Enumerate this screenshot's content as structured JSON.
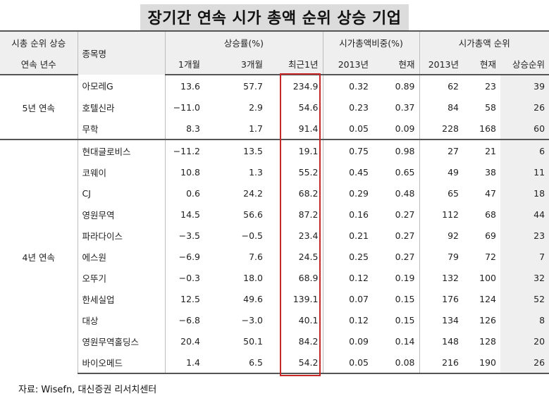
{
  "title": "장기간 연속 시가 총액 순위 상승 기업",
  "headers": {
    "streak_top": "시총 순위 상승",
    "streak_bottom": "연속 년수",
    "name": "종목명",
    "return_group": "상승률(%)",
    "return_1m": "1개월",
    "return_3m": "3개월",
    "return_1y": "최근1년",
    "weight_group": "시가총액비중(%)",
    "weight_2013": "2013년",
    "weight_now": "현재",
    "rank_group": "시가총액 순위",
    "rank_2013": "2013년",
    "rank_now": "현재",
    "rank_up": "상승순위"
  },
  "groups": [
    {
      "label": "5년 연속",
      "rows": [
        {
          "name": "아모레G",
          "r1m": "13.6",
          "r3m": "57.7",
          "r1y": "234.9",
          "w2013": "0.32",
          "wnow": "0.89",
          "k2013": "62",
          "know": "23",
          "kup": "39"
        },
        {
          "name": "호텔신라",
          "r1m": "−11.0",
          "r3m": "2.9",
          "r1y": "54.6",
          "w2013": "0.23",
          "wnow": "0.37",
          "k2013": "84",
          "know": "58",
          "kup": "26"
        },
        {
          "name": "무학",
          "r1m": "8.3",
          "r3m": "1.7",
          "r1y": "91.4",
          "w2013": "0.05",
          "wnow": "0.09",
          "k2013": "228",
          "know": "168",
          "kup": "60"
        }
      ]
    },
    {
      "label": "4년 연속",
      "rows": [
        {
          "name": "현대글로비스",
          "r1m": "−11.2",
          "r3m": "13.5",
          "r1y": "19.1",
          "w2013": "0.75",
          "wnow": "0.98",
          "k2013": "27",
          "know": "21",
          "kup": "6"
        },
        {
          "name": "코웨이",
          "r1m": "10.8",
          "r3m": "1.3",
          "r1y": "55.2",
          "w2013": "0.45",
          "wnow": "0.65",
          "k2013": "49",
          "know": "38",
          "kup": "11"
        },
        {
          "name": "CJ",
          "r1m": "0.6",
          "r3m": "24.2",
          "r1y": "68.2",
          "w2013": "0.29",
          "wnow": "0.48",
          "k2013": "65",
          "know": "47",
          "kup": "18"
        },
        {
          "name": "영원무역",
          "r1m": "14.5",
          "r3m": "56.6",
          "r1y": "87.2",
          "w2013": "0.16",
          "wnow": "0.27",
          "k2013": "112",
          "know": "68",
          "kup": "44"
        },
        {
          "name": "파라다이스",
          "r1m": "−3.5",
          "r3m": "−0.5",
          "r1y": "23.4",
          "w2013": "0.21",
          "wnow": "0.27",
          "k2013": "92",
          "know": "69",
          "kup": "23"
        },
        {
          "name": "에스원",
          "r1m": "−6.9",
          "r3m": "7.6",
          "r1y": "24.5",
          "w2013": "0.25",
          "wnow": "0.27",
          "k2013": "79",
          "know": "72",
          "kup": "7"
        },
        {
          "name": "오뚜기",
          "r1m": "−0.3",
          "r3m": "18.0",
          "r1y": "68.9",
          "w2013": "0.12",
          "wnow": "0.19",
          "k2013": "132",
          "know": "100",
          "kup": "32"
        },
        {
          "name": "한세실업",
          "r1m": "12.5",
          "r3m": "49.6",
          "r1y": "139.1",
          "w2013": "0.07",
          "wnow": "0.15",
          "k2013": "176",
          "know": "124",
          "kup": "52"
        },
        {
          "name": "대상",
          "r1m": "−6.8",
          "r3m": "−3.0",
          "r1y": "40.1",
          "w2013": "0.12",
          "wnow": "0.15",
          "k2013": "134",
          "know": "126",
          "kup": "8"
        },
        {
          "name": "영원무역홀딩스",
          "r1m": "20.4",
          "r3m": "50.1",
          "r1y": "84.2",
          "w2013": "0.09",
          "wnow": "0.14",
          "k2013": "148",
          "know": "128",
          "kup": "20"
        },
        {
          "name": "바이오메드",
          "r1m": "1.4",
          "r3m": "6.5",
          "r1y": "54.2",
          "w2013": "0.05",
          "wnow": "0.08",
          "k2013": "216",
          "know": "190",
          "kup": "26"
        }
      ]
    }
  ],
  "source": "자료: Wisefn, 대신증권 리서치센터"
}
